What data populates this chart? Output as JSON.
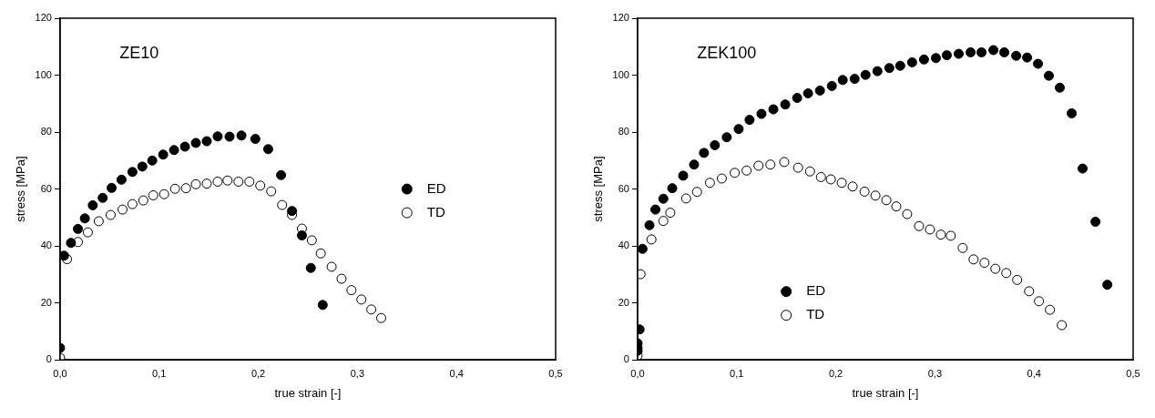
{
  "chart_data": [
    {
      "type": "scatter",
      "title": "ZE10",
      "xlabel": "true strain [-]",
      "ylabel": "stress [MPa]",
      "xlim": [
        0,
        0.5
      ],
      "ylim": [
        0,
        120
      ],
      "xticks": [
        {
          "value": 0,
          "label": "0,0"
        },
        {
          "value": 0.1,
          "label": "0,1"
        },
        {
          "value": 0.2,
          "label": "0,2"
        },
        {
          "value": 0.3,
          "label": "0,3"
        },
        {
          "value": 0.4,
          "label": "0,4"
        },
        {
          "value": 0.5,
          "label": "0,5"
        }
      ],
      "yticks": [
        0,
        20,
        40,
        60,
        80,
        100,
        120
      ],
      "grid": false,
      "legend": "right",
      "marker": "circle",
      "series": [
        {
          "name": "ED",
          "color": "#000000",
          "x": [
            0,
            0.004,
            0.011,
            0.018,
            0.025,
            0.033,
            0.043,
            0.052,
            0.062,
            0.073,
            0.083,
            0.093,
            0.104,
            0.115,
            0.126,
            0.137,
            0.148,
            0.159,
            0.171,
            0.183,
            0.197,
            0.21,
            0.223,
            0.234,
            0.244,
            0.253,
            0.265
          ],
          "values": [
            4.2,
            36.6,
            41.1,
            46,
            49.7,
            54.3,
            56.9,
            60.4,
            63.3,
            66,
            67.9,
            70,
            72.1,
            73.7,
            74.9,
            76.2,
            76.8,
            78.5,
            78.4,
            78.8,
            77.6,
            74,
            64.9,
            52.3,
            43.7,
            32.3,
            19.3
          ]
        },
        {
          "name": "TD",
          "color": "#ffffff",
          "x": [
            0,
            0.007,
            0.018,
            0.028,
            0.039,
            0.051,
            0.063,
            0.073,
            0.084,
            0.094,
            0.105,
            0.116,
            0.127,
            0.137,
            0.148,
            0.159,
            0.169,
            0.18,
            0.191,
            0.202,
            0.213,
            0.224,
            0.234,
            0.244,
            0.254,
            0.263,
            0.274,
            0.284,
            0.294,
            0.304,
            0.314,
            0.324
          ],
          "values": [
            0.7,
            35.4,
            41.4,
            44.8,
            48.7,
            50.9,
            52.8,
            54.7,
            56,
            57.8,
            58.2,
            60.1,
            60.3,
            61.7,
            61.9,
            62.6,
            63,
            62.6,
            62.6,
            61.2,
            59.2,
            54.4,
            50.9,
            46.1,
            42,
            37.4,
            32.7,
            28.5,
            24.5,
            21.2,
            17.7,
            14.7
          ]
        }
      ]
    },
    {
      "type": "scatter",
      "title": "ZEK100",
      "xlabel": "true strain [-]",
      "ylabel": "stress [MPa]",
      "xlim": [
        0,
        0.5
      ],
      "ylim": [
        0,
        120
      ],
      "xticks": [
        {
          "value": 0,
          "label": "0,0"
        },
        {
          "value": 0.1,
          "label": "0,1"
        },
        {
          "value": 0.2,
          "label": "0,2"
        },
        {
          "value": 0.3,
          "label": "0,3"
        },
        {
          "value": 0.4,
          "label": "0,4"
        },
        {
          "value": 0.5,
          "label": "0,5"
        }
      ],
      "yticks": [
        0,
        20,
        40,
        60,
        80,
        100,
        120
      ],
      "grid": false,
      "legend": "bottom",
      "marker": "circle",
      "series": [
        {
          "name": "ED",
          "color": "#000000",
          "x": [
            0,
            0,
            0,
            0.002,
            0.005,
            0.012,
            0.018,
            0.026,
            0.035,
            0.046,
            0.057,
            0.067,
            0.078,
            0.09,
            0.102,
            0.113,
            0.125,
            0.137,
            0.149,
            0.161,
            0.172,
            0.184,
            0.196,
            0.207,
            0.219,
            0.23,
            0.242,
            0.254,
            0.265,
            0.277,
            0.289,
            0.301,
            0.312,
            0.324,
            0.336,
            0.347,
            0.359,
            0.37,
            0.382,
            0.393,
            0.404,
            0.415,
            0.426,
            0.438,
            0.449,
            0.462,
            0.474
          ],
          "values": [
            3.2,
            4.2,
            5.8,
            10.7,
            39,
            47.3,
            52.8,
            56.6,
            60.3,
            64.7,
            68.6,
            72.7,
            75.4,
            78.2,
            81.1,
            84.3,
            86.4,
            88,
            89.7,
            92,
            93.6,
            94.6,
            96.2,
            98.3,
            98.7,
            100.1,
            101.4,
            102.5,
            103.3,
            104.5,
            105.5,
            106,
            107,
            107.5,
            108,
            108,
            108.8,
            108,
            106.8,
            106.2,
            104,
            99.8,
            95.6,
            86.6,
            67.2,
            48.5,
            26.4
          ]
        },
        {
          "name": "TD",
          "color": "#ffffff",
          "x": [
            0,
            0.003,
            0.014,
            0.026,
            0.033,
            0.049,
            0.06,
            0.073,
            0.085,
            0.098,
            0.11,
            0.122,
            0.134,
            0.148,
            0.162,
            0.174,
            0.185,
            0.195,
            0.206,
            0.217,
            0.229,
            0.24,
            0.251,
            0.261,
            0.272,
            0.284,
            0.295,
            0.306,
            0.316,
            0.328,
            0.339,
            0.35,
            0.361,
            0.372,
            0.383,
            0.395,
            0.405,
            0.416,
            0.428
          ],
          "values": [
            1.5,
            30.1,
            42.3,
            48.8,
            51.7,
            56.7,
            59,
            62.2,
            63.7,
            65.7,
            66.5,
            68.2,
            68.6,
            69.5,
            67.5,
            66.2,
            64.2,
            63.4,
            62.2,
            60.9,
            59.1,
            57.7,
            56.1,
            53.9,
            51.2,
            47,
            45.8,
            44,
            43.6,
            39.3,
            35.3,
            34.1,
            32,
            30.5,
            28.1,
            24.1,
            20.6,
            17.6,
            12.2
          ]
        }
      ]
    }
  ]
}
